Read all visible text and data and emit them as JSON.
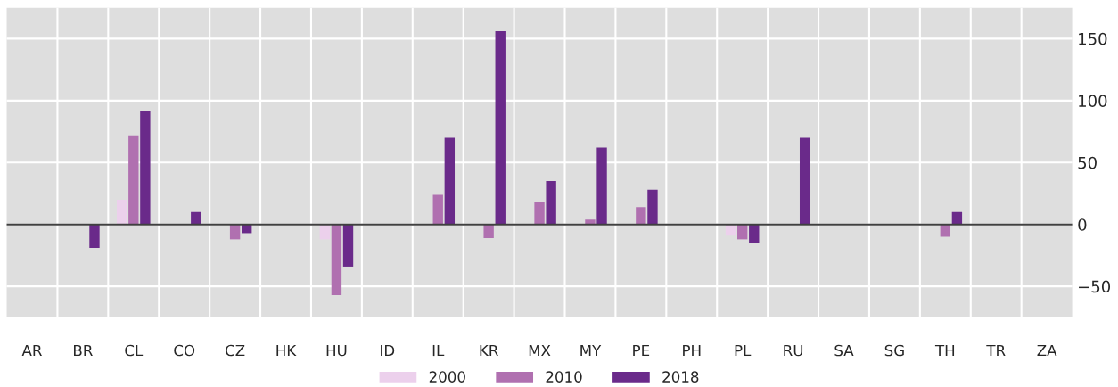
{
  "chart_data": {
    "type": "bar",
    "categories": [
      "AR",
      "BR",
      "CL",
      "CO",
      "CZ",
      "HK",
      "HU",
      "ID",
      "IL",
      "KR",
      "MX",
      "MY",
      "PE",
      "PH",
      "PL",
      "RU",
      "SA",
      "SG",
      "TH",
      "TR",
      "ZA"
    ],
    "series": [
      {
        "name": "2000",
        "color": "#ecd0ec",
        "values": [
          null,
          null,
          20,
          null,
          null,
          null,
          -12,
          null,
          null,
          null,
          null,
          null,
          null,
          null,
          -9,
          null,
          null,
          null,
          null,
          null,
          null
        ]
      },
      {
        "name": "2010",
        "color": "#b070b0",
        "values": [
          null,
          null,
          72,
          null,
          -12,
          null,
          -57,
          null,
          24,
          -11,
          18,
          4,
          14,
          null,
          -12,
          null,
          null,
          null,
          -10,
          null,
          null
        ]
      },
      {
        "name": "2018",
        "color": "#6a2a8a",
        "values": [
          null,
          -19,
          92,
          10,
          -7,
          null,
          -34,
          null,
          70,
          156,
          35,
          62,
          28,
          null,
          -15,
          70,
          null,
          null,
          10,
          null,
          null
        ]
      }
    ],
    "ylim": [
      -75,
      175
    ],
    "yticks": [
      {
        "value": -50,
        "label": "−50"
      },
      0,
      50,
      100,
      150
    ],
    "ref_lines": [
      {
        "axis": "y",
        "value": 0,
        "color": "#404040"
      }
    ],
    "grid": true,
    "legend": "bottom"
  }
}
